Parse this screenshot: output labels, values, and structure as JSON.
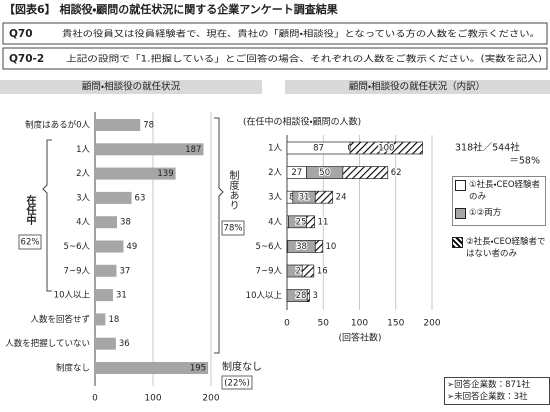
{
  "header": {
    "title": "【図表6】 相談役・顧問の就任状況に関する企業アンケート調査結果"
  },
  "questions": [
    {
      "id": "Q70",
      "text": "貴社の役員又は役員経験者で、現在、貴社の「顧問・相談役」となっている方の人数をご教示ください。"
    },
    {
      "id": "Q70-2",
      "text": "上記の設問で「1.把握している」とご回答の場合、それぞれの人数をご教示ください。(実数を記入)"
    }
  ],
  "chart_data": [
    {
      "type": "bar",
      "orientation": "horizontal",
      "title": "顧問・相談役の就任状況",
      "categories": [
        "制度はあるが0人",
        "1人",
        "2人",
        "3人",
        "4人",
        "5~6人",
        "7~9人",
        "10人以上",
        "人数を回答せず",
        "人数を把握していない",
        "制度なし"
      ],
      "values": [
        78,
        187,
        139,
        63,
        38,
        49,
        37,
        31,
        18,
        36,
        195
      ],
      "color": "#a6a6a6",
      "xlim": [
        0,
        200
      ],
      "xticks": [
        0,
        100,
        200
      ],
      "grid": true,
      "annotations": {
        "serving": [
          "在任中",
          "62%"
        ],
        "with_system": [
          "制度あり",
          "78%"
        ],
        "without_system": [
          "制度なし",
          "(22%)"
        ]
      }
    },
    {
      "type": "bar",
      "orientation": "horizontal",
      "stacked": true,
      "title": "顧問・相談役の就任状況（内訳）",
      "subtitle": "(在任中の相談役・顧問の人数)",
      "xlabel": "(回答社数)",
      "categories": [
        "1人",
        "2人",
        "3人",
        "4人",
        "5~6人",
        "7~9人",
        "10人以上"
      ],
      "series": [
        {
          "name": "①社長・CEO経験者のみ",
          "color": "#ffffff",
          "values": [
            87,
            27,
            8,
            2,
            1,
            0,
            0
          ]
        },
        {
          "name": "①②両方",
          "color": "#a6a6a6",
          "values": [
            0,
            50,
            31,
            25,
            38,
            21,
            28
          ]
        },
        {
          "name": "②社長・CEO経験者ではない者のみ",
          "color": "#000000",
          "pattern": "diagonal",
          "values": [
            100,
            62,
            24,
            11,
            10,
            16,
            3
          ]
        }
      ],
      "xlim": [
        0,
        200
      ],
      "xticks": [
        0,
        50,
        100,
        150,
        200
      ],
      "grid": true,
      "note": [
        "318社／544社",
        "＝58%"
      ]
    }
  ],
  "footnotes": [
    "➢回答企業数：871社",
    "➢未回答企業数：3社"
  ]
}
